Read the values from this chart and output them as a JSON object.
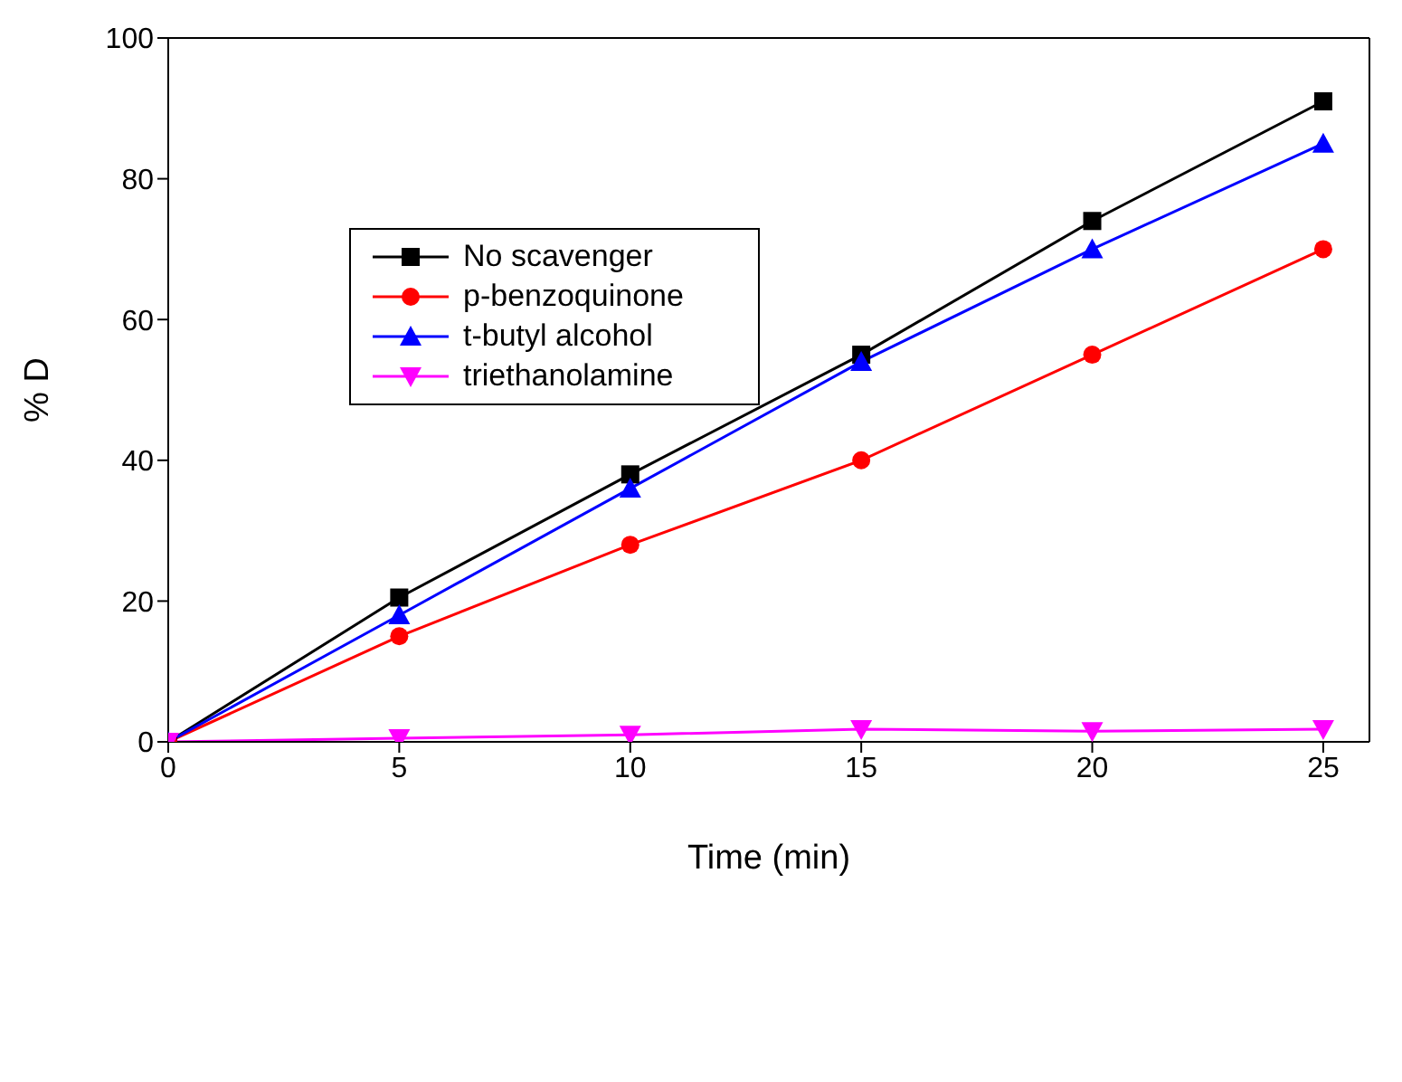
{
  "chart_data": {
    "type": "line",
    "xlabel": "Time (min)",
    "ylabel": "% D",
    "x": [
      0,
      5,
      10,
      15,
      20,
      25
    ],
    "xlim": [
      0,
      26
    ],
    "xticks": [
      0,
      5,
      10,
      15,
      20,
      25
    ],
    "ylim": [
      0,
      100
    ],
    "yticks": [
      0,
      20,
      40,
      60,
      80,
      100
    ],
    "grid": false,
    "legend": "top left",
    "line_style": "solid",
    "series": [
      {
        "name": "No scavenger",
        "color": "#000000",
        "marker": "square",
        "values": [
          0,
          20.5,
          38,
          55,
          74,
          91
        ]
      },
      {
        "name": "p-benzoquinone",
        "color": "#ff0000",
        "marker": "circle",
        "values": [
          0,
          15,
          28,
          40,
          55,
          70
        ]
      },
      {
        "name": "t-butyl alcohol",
        "color": "#0000ff",
        "marker": "triangle",
        "values": [
          0,
          18,
          36,
          54,
          70,
          85
        ]
      },
      {
        "name": "triethanolamine",
        "color": "#ff00ff",
        "marker": "triangle-down",
        "values": [
          0,
          0.5,
          1,
          1.8,
          1.5,
          1.8
        ]
      }
    ]
  }
}
